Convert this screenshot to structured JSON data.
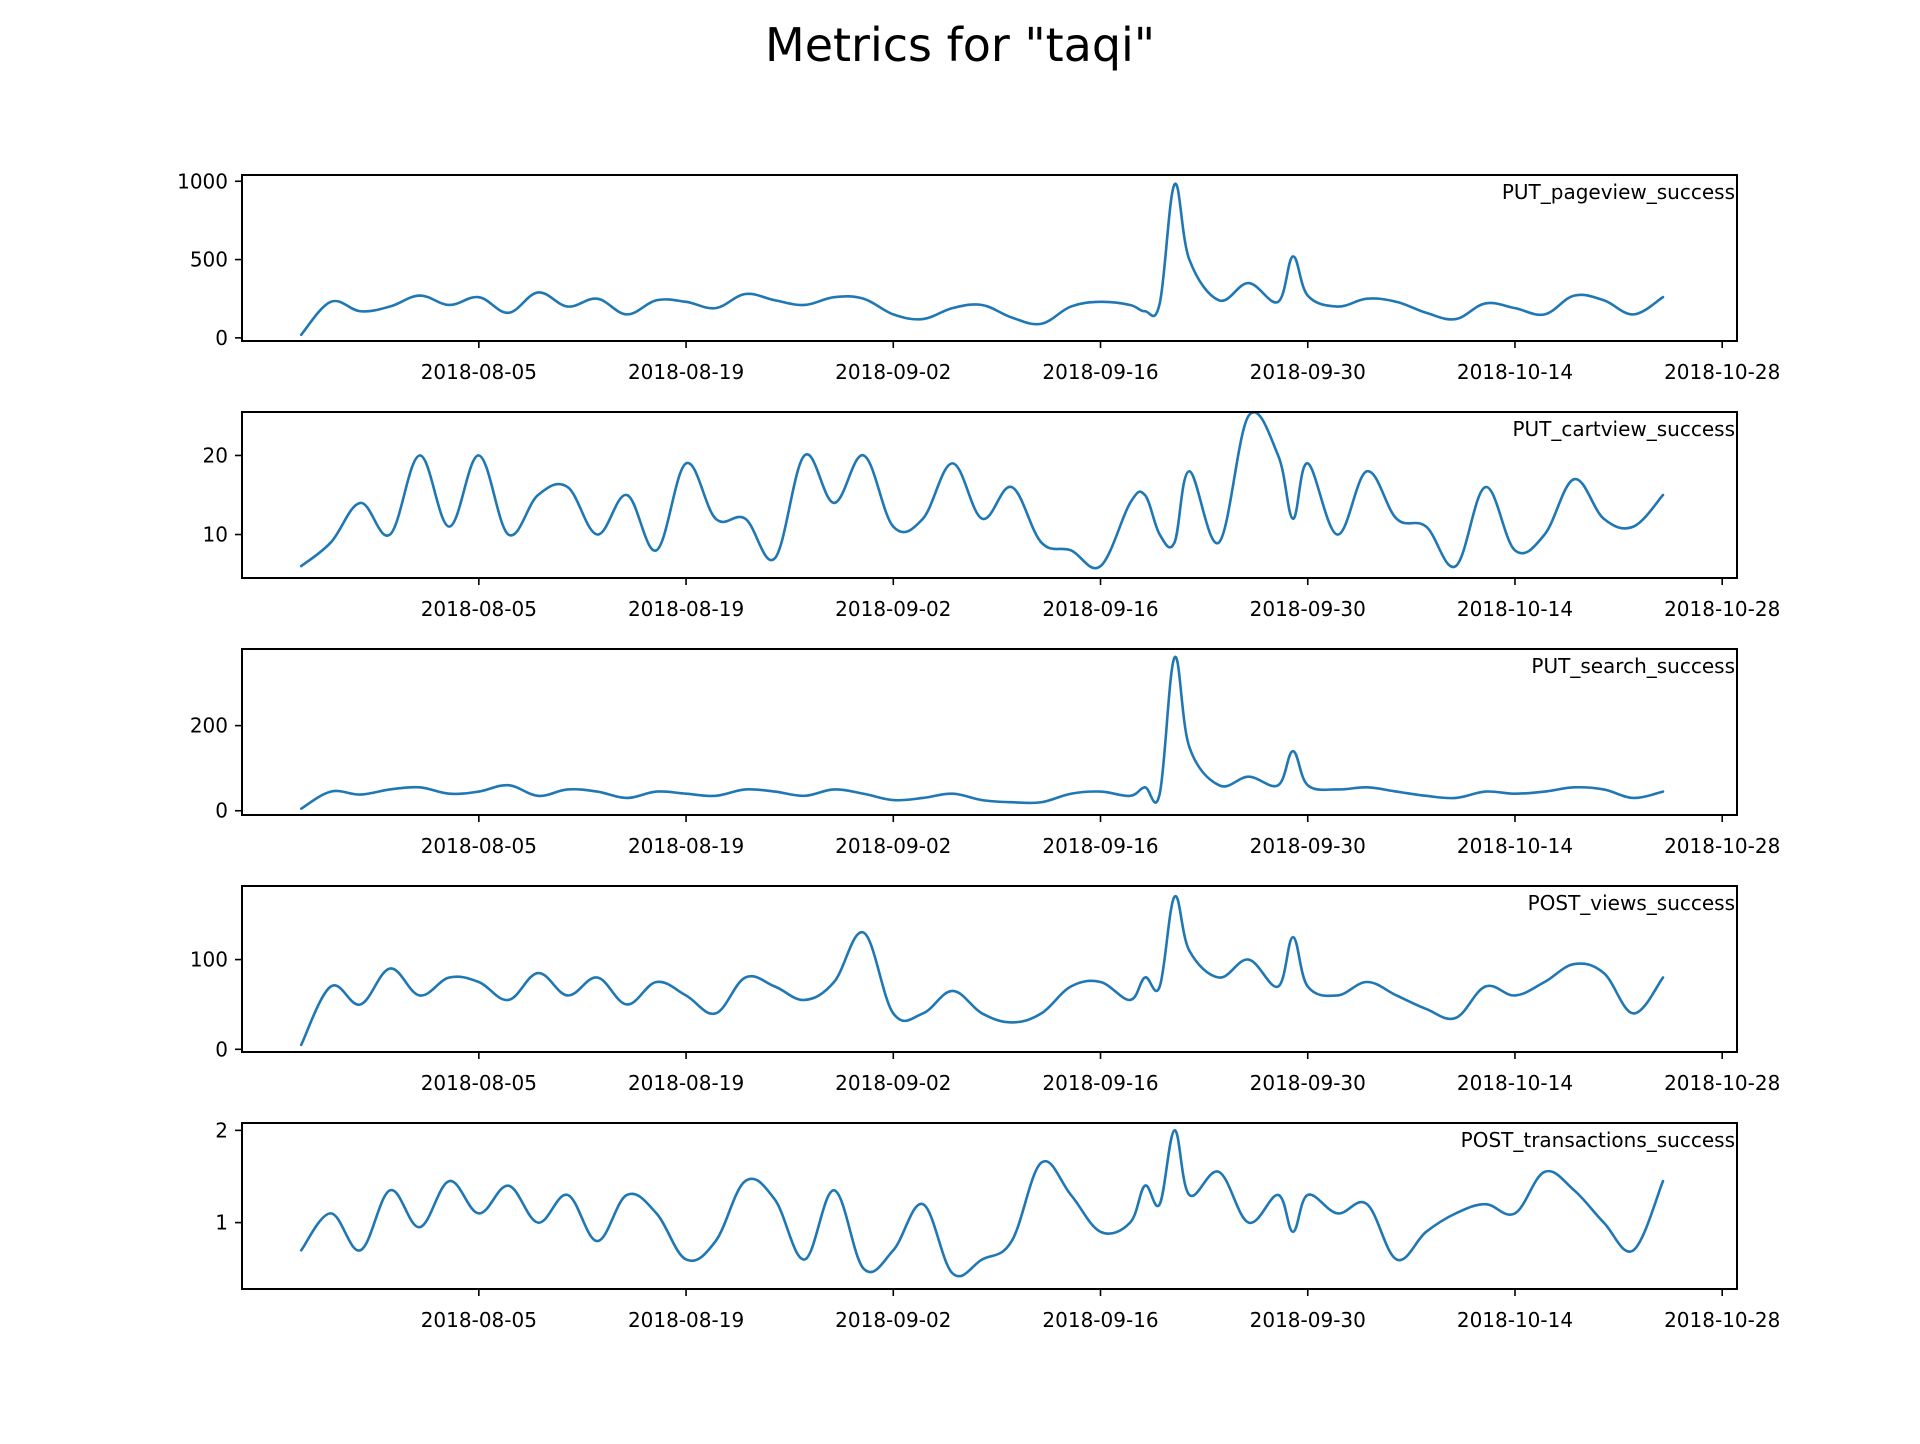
{
  "chart_data": {
    "title": "Metrics for \"taqi\"",
    "type": "line",
    "line_color": "#1f77b4",
    "x_ticks": [
      "2018-08-05",
      "2018-08-19",
      "2018-09-02",
      "2018-09-16",
      "2018-09-30",
      "2018-10-14",
      "2018-10-28"
    ],
    "x_range": [
      "2018-07-20",
      "2018-10-29"
    ],
    "x_data_range": [
      "2018-07-24",
      "2018-10-24"
    ],
    "grid": false,
    "panels": [
      {
        "series_name": "PUT_pageview_success",
        "ylim": [
          -20,
          1040
        ],
        "yticks": [
          0,
          500,
          1000
        ],
        "ytick_labels": [
          "0",
          "500",
          "1000"
        ],
        "x": [
          "2018-07-24",
          "2018-07-26",
          "2018-07-28",
          "2018-07-30",
          "2018-08-01",
          "2018-08-03",
          "2018-08-05",
          "2018-08-07",
          "2018-08-09",
          "2018-08-11",
          "2018-08-13",
          "2018-08-15",
          "2018-08-17",
          "2018-08-19",
          "2018-08-21",
          "2018-08-23",
          "2018-08-25",
          "2018-08-27",
          "2018-08-29",
          "2018-08-31",
          "2018-09-02",
          "2018-09-04",
          "2018-09-06",
          "2018-09-08",
          "2018-09-10",
          "2018-09-12",
          "2018-09-14",
          "2018-09-16",
          "2018-09-18",
          "2018-09-19",
          "2018-09-20",
          "2018-09-21",
          "2018-09-22",
          "2018-09-24",
          "2018-09-26",
          "2018-09-28",
          "2018-09-29",
          "2018-09-30",
          "2018-10-02",
          "2018-10-04",
          "2018-10-06",
          "2018-10-08",
          "2018-10-10",
          "2018-10-12",
          "2018-10-14",
          "2018-10-16",
          "2018-10-18",
          "2018-10-20",
          "2018-10-22",
          "2018-10-24"
        ],
        "values": [
          20,
          230,
          170,
          200,
          270,
          210,
          260,
          160,
          290,
          200,
          250,
          150,
          240,
          230,
          190,
          280,
          240,
          210,
          260,
          250,
          150,
          120,
          190,
          210,
          130,
          90,
          200,
          230,
          210,
          170,
          220,
          980,
          500,
          240,
          350,
          230,
          520,
          270,
          200,
          250,
          230,
          160,
          120,
          220,
          190,
          150,
          270,
          240,
          150,
          260
        ]
      },
      {
        "series_name": "PUT_cartview_success",
        "ylim": [
          4.5,
          25.5
        ],
        "yticks": [
          10,
          20
        ],
        "ytick_labels": [
          "10",
          "20"
        ],
        "x": [
          "2018-07-24",
          "2018-07-26",
          "2018-07-28",
          "2018-07-30",
          "2018-08-01",
          "2018-08-03",
          "2018-08-05",
          "2018-08-07",
          "2018-08-09",
          "2018-08-11",
          "2018-08-13",
          "2018-08-15",
          "2018-08-17",
          "2018-08-19",
          "2018-08-21",
          "2018-08-23",
          "2018-08-25",
          "2018-08-27",
          "2018-08-29",
          "2018-08-31",
          "2018-09-02",
          "2018-09-04",
          "2018-09-06",
          "2018-09-08",
          "2018-09-10",
          "2018-09-12",
          "2018-09-14",
          "2018-09-16",
          "2018-09-18",
          "2018-09-19",
          "2018-09-20",
          "2018-09-21",
          "2018-09-22",
          "2018-09-24",
          "2018-09-26",
          "2018-09-28",
          "2018-09-29",
          "2018-09-30",
          "2018-10-02",
          "2018-10-04",
          "2018-10-06",
          "2018-10-08",
          "2018-10-10",
          "2018-10-12",
          "2018-10-14",
          "2018-10-16",
          "2018-10-18",
          "2018-10-20",
          "2018-10-22",
          "2018-10-24"
        ],
        "values": [
          6,
          9,
          14,
          10,
          20,
          11,
          20,
          10,
          15,
          16,
          10,
          15,
          8,
          19,
          12,
          12,
          7,
          20,
          14,
          20,
          11,
          12,
          19,
          12,
          16,
          9,
          8,
          6,
          14,
          15,
          10,
          9,
          18,
          9,
          25,
          20,
          12,
          19,
          10,
          18,
          12,
          11,
          6,
          16,
          8,
          10,
          17,
          12,
          11,
          15
        ]
      },
      {
        "series_name": "PUT_search_success",
        "ylim": [
          -10,
          380
        ],
        "yticks": [
          0,
          200
        ],
        "ytick_labels": [
          "0",
          "200"
        ],
        "x": [
          "2018-07-24",
          "2018-07-26",
          "2018-07-28",
          "2018-07-30",
          "2018-08-01",
          "2018-08-03",
          "2018-08-05",
          "2018-08-07",
          "2018-08-09",
          "2018-08-11",
          "2018-08-13",
          "2018-08-15",
          "2018-08-17",
          "2018-08-19",
          "2018-08-21",
          "2018-08-23",
          "2018-08-25",
          "2018-08-27",
          "2018-08-29",
          "2018-08-31",
          "2018-09-02",
          "2018-09-04",
          "2018-09-06",
          "2018-09-08",
          "2018-09-10",
          "2018-09-12",
          "2018-09-14",
          "2018-09-16",
          "2018-09-18",
          "2018-09-19",
          "2018-09-20",
          "2018-09-21",
          "2018-09-22",
          "2018-09-24",
          "2018-09-26",
          "2018-09-28",
          "2018-09-29",
          "2018-09-30",
          "2018-10-02",
          "2018-10-04",
          "2018-10-06",
          "2018-10-08",
          "2018-10-10",
          "2018-10-12",
          "2018-10-14",
          "2018-10-16",
          "2018-10-18",
          "2018-10-20",
          "2018-10-22",
          "2018-10-24"
        ],
        "values": [
          5,
          45,
          38,
          50,
          55,
          40,
          45,
          60,
          35,
          50,
          45,
          30,
          45,
          40,
          35,
          50,
          45,
          35,
          50,
          40,
          25,
          30,
          40,
          25,
          20,
          20,
          40,
          45,
          35,
          55,
          40,
          360,
          150,
          60,
          80,
          60,
          140,
          60,
          50,
          55,
          45,
          35,
          30,
          45,
          40,
          45,
          55,
          50,
          30,
          45
        ]
      },
      {
        "series_name": "POST_views_success",
        "ylim": [
          -3,
          182
        ],
        "yticks": [
          0,
          100
        ],
        "ytick_labels": [
          "0",
          "100"
        ],
        "x": [
          "2018-07-24",
          "2018-07-26",
          "2018-07-28",
          "2018-07-30",
          "2018-08-01",
          "2018-08-03",
          "2018-08-05",
          "2018-08-07",
          "2018-08-09",
          "2018-08-11",
          "2018-08-13",
          "2018-08-15",
          "2018-08-17",
          "2018-08-19",
          "2018-08-21",
          "2018-08-23",
          "2018-08-25",
          "2018-08-27",
          "2018-08-29",
          "2018-08-31",
          "2018-09-02",
          "2018-09-04",
          "2018-09-06",
          "2018-09-08",
          "2018-09-10",
          "2018-09-12",
          "2018-09-14",
          "2018-09-16",
          "2018-09-18",
          "2018-09-19",
          "2018-09-20",
          "2018-09-21",
          "2018-09-22",
          "2018-09-24",
          "2018-09-26",
          "2018-09-28",
          "2018-09-29",
          "2018-09-30",
          "2018-10-02",
          "2018-10-04",
          "2018-10-06",
          "2018-10-08",
          "2018-10-10",
          "2018-10-12",
          "2018-10-14",
          "2018-10-16",
          "2018-10-18",
          "2018-10-20",
          "2018-10-22",
          "2018-10-24"
        ],
        "values": [
          5,
          70,
          50,
          90,
          60,
          80,
          75,
          55,
          85,
          60,
          80,
          50,
          75,
          60,
          40,
          80,
          70,
          55,
          75,
          130,
          40,
          40,
          65,
          40,
          30,
          40,
          70,
          75,
          55,
          80,
          70,
          170,
          110,
          80,
          100,
          70,
          125,
          70,
          60,
          75,
          60,
          45,
          35,
          70,
          60,
          75,
          95,
          85,
          40,
          80
        ]
      },
      {
        "series_name": "POST_transactions_success",
        "ylim": [
          0.28,
          2.08
        ],
        "yticks": [
          1,
          2
        ],
        "ytick_labels": [
          "1",
          "2"
        ],
        "x": [
          "2018-07-24",
          "2018-07-26",
          "2018-07-28",
          "2018-07-30",
          "2018-08-01",
          "2018-08-03",
          "2018-08-05",
          "2018-08-07",
          "2018-08-09",
          "2018-08-11",
          "2018-08-13",
          "2018-08-15",
          "2018-08-17",
          "2018-08-19",
          "2018-08-21",
          "2018-08-23",
          "2018-08-25",
          "2018-08-27",
          "2018-08-29",
          "2018-08-31",
          "2018-09-02",
          "2018-09-04",
          "2018-09-06",
          "2018-09-08",
          "2018-09-10",
          "2018-09-12",
          "2018-09-14",
          "2018-09-16",
          "2018-09-18",
          "2018-09-19",
          "2018-09-20",
          "2018-09-21",
          "2018-09-22",
          "2018-09-24",
          "2018-09-26",
          "2018-09-28",
          "2018-09-29",
          "2018-09-30",
          "2018-10-02",
          "2018-10-04",
          "2018-10-06",
          "2018-10-08",
          "2018-10-10",
          "2018-10-12",
          "2018-10-14",
          "2018-10-16",
          "2018-10-18",
          "2018-10-20",
          "2018-10-22",
          "2018-10-24"
        ],
        "values": [
          0.7,
          1.1,
          0.7,
          1.35,
          0.95,
          1.45,
          1.1,
          1.4,
          1.0,
          1.3,
          0.8,
          1.3,
          1.1,
          0.6,
          0.8,
          1.45,
          1.25,
          0.6,
          1.35,
          0.5,
          0.7,
          1.2,
          0.45,
          0.6,
          0.8,
          1.65,
          1.3,
          0.9,
          1.0,
          1.4,
          1.2,
          2.0,
          1.3,
          1.55,
          1.0,
          1.3,
          0.9,
          1.3,
          1.1,
          1.2,
          0.6,
          0.9,
          1.1,
          1.2,
          1.1,
          1.55,
          1.35,
          1.0,
          0.7,
          1.45
        ]
      }
    ]
  }
}
